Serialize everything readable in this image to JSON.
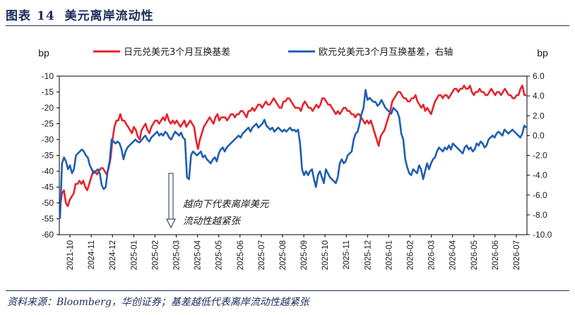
{
  "figure": {
    "label": "图表",
    "number": "14",
    "title": "美元离岸流动性",
    "source": "资料来源：Bloomberg，华创证券；基差越低代表离岸流动性越紧张"
  },
  "colors": {
    "red": "#e8202a",
    "blue": "#1f5eb0",
    "navy": "#1a2c5c"
  },
  "chart_data": {
    "type": "line",
    "left_unit": "bp",
    "right_unit": "bp",
    "left_axis": {
      "min": -60,
      "max": -10,
      "ticks": [
        -10,
        -15,
        -20,
        -25,
        -30,
        -35,
        -40,
        -45,
        -50,
        -55,
        -60
      ]
    },
    "right_axis": {
      "min": -10,
      "max": 6,
      "ticks": [
        "6.0",
        "4.0",
        "2.0",
        "0.0",
        "-2.0",
        "-4.0",
        "-6.0",
        "-8.0",
        "-10.0"
      ],
      "tick_values": [
        6,
        4,
        2,
        0,
        -2,
        -4,
        -6,
        -8,
        -10
      ]
    },
    "x_ticks": [
      "2021-10",
      "2024-11",
      "2024-12",
      "2025-01",
      "2025-02",
      "2025-03",
      "2025-04",
      "2025-05",
      "2025-06",
      "2025-07",
      "2025-08",
      "2025-09",
      "2025-10",
      "2025-11",
      "2025-12",
      "2026-01",
      "2026-02",
      "2026-03",
      "2026-04",
      "2026-05",
      "2026-06",
      "2026-07"
    ],
    "annotation": {
      "line1": "越向下代表离岸美元",
      "line2": "流动性越紧张"
    },
    "series": [
      {
        "name": "日元兑美元3个月互换基差",
        "axis": "left",
        "color": "#e8202a",
        "values": [
          -51,
          -47,
          -46,
          -50,
          -51,
          -49,
          -48,
          -47,
          -44,
          -44,
          -43,
          -44,
          -43,
          -45,
          -46,
          -44,
          -42,
          -40,
          -40,
          -41,
          -40,
          -39,
          -39,
          -40,
          -41,
          -39,
          -36,
          -30,
          -26,
          -24,
          -24,
          -22,
          -24,
          -24,
          -25,
          -26,
          -27,
          -28,
          -26,
          -27,
          -29,
          -30,
          -27,
          -26,
          -25,
          -27,
          -28,
          -26,
          -25,
          -24,
          -24,
          -25,
          -24,
          -23,
          -24,
          -22,
          -24,
          -25,
          -24,
          -25,
          -24,
          -25,
          -26,
          -25,
          -24,
          -26,
          -25,
          -24,
          -25,
          -26,
          -30,
          -33,
          -30,
          -28,
          -26,
          -25,
          -24,
          -23,
          -24,
          -25,
          -23,
          -22,
          -24,
          -23,
          -23,
          -23,
          -24,
          -23,
          -22,
          -22,
          -23,
          -22,
          -22,
          -21,
          -21,
          -22,
          -23,
          -21,
          -21,
          -20,
          -21,
          -20,
          -19,
          -19,
          -20,
          -19,
          -18,
          -19,
          -19,
          -18,
          -17,
          -18,
          -19,
          -20,
          -20,
          -18,
          -18,
          -17,
          -17,
          -18,
          -19,
          -20,
          -20,
          -20,
          -21,
          -19,
          -18,
          -19,
          -20,
          -20,
          -21,
          -20,
          -19,
          -20,
          -19,
          -17,
          -17,
          -18,
          -19,
          -19,
          -20,
          -21,
          -22,
          -21,
          -22,
          -21,
          -20,
          -20,
          -21,
          -21,
          -22,
          -22,
          -23,
          -22,
          -22,
          -23,
          -24,
          -25,
          -24,
          -25,
          -24,
          -26,
          -28,
          -30,
          -32,
          -29,
          -28,
          -27,
          -25,
          -23,
          -21,
          -18,
          -17,
          -16,
          -15,
          -15,
          -16,
          -17,
          -17,
          -18,
          -18,
          -17,
          -17,
          -16,
          -18,
          -19,
          -20,
          -19,
          -21,
          -20,
          -21,
          -22,
          -20,
          -18,
          -17,
          -16,
          -16,
          -17,
          -16,
          -16,
          -17,
          -16,
          -15,
          -14,
          -14,
          -15,
          -14,
          -14,
          -13,
          -14,
          -14,
          -13,
          -15,
          -16,
          -15,
          -15,
          -14,
          -15,
          -15,
          -16,
          -16,
          -15,
          -14,
          -15,
          -16,
          -15,
          -15,
          -16,
          -15,
          -14,
          -15,
          -16,
          -16,
          -17,
          -17,
          -16,
          -16,
          -14,
          -13,
          -16,
          -16
        ]
      },
      {
        "name": "欧元兑美元3个月互换基差，右轴",
        "axis": "right",
        "color": "#1f5eb0",
        "values": [
          -8.4,
          -2.8,
          -2.2,
          -2.6,
          -3.4,
          -3.0,
          -3.8,
          -3.4,
          -2.0,
          -1.8,
          -1.6,
          -1.4,
          -1.6,
          -2.0,
          -2.2,
          -3.0,
          -3.4,
          -3.8,
          -3.6,
          -3.4,
          -3.8,
          -5.0,
          -5.4,
          -5.2,
          -3.6,
          -2.6,
          -0.4,
          -0.6,
          -0.8,
          -0.6,
          -0.8,
          -1.4,
          -2.4,
          -1.6,
          -1.2,
          -1.0,
          -0.8,
          -0.6,
          -0.4,
          -0.6,
          -0.7,
          -0.5,
          -0.2,
          0.0,
          -0.4,
          -0.6,
          -0.2,
          0.0,
          0.2,
          0.4,
          0.0,
          0.2,
          0.0,
          0.4,
          0.2,
          -0.2,
          -0.4,
          0.0,
          0.4,
          0.2,
          0.0,
          0.3,
          -0.2,
          -0.4,
          -4.2,
          -4.4,
          -2.0,
          -1.6,
          -1.8,
          -2.0,
          -1.8,
          -1.6,
          -2.2,
          -2.0,
          -2.4,
          -2.6,
          -2.8,
          -2.4,
          -2.2,
          -2.6,
          -1.8,
          -1.4,
          -1.2,
          -1.6,
          -1.2,
          -1.0,
          -0.8,
          -0.6,
          -0.4,
          -0.2,
          0.0,
          -0.2,
          0.2,
          0.4,
          0.6,
          0.8,
          0.4,
          0.8,
          1.0,
          1.2,
          0.8,
          1.0,
          1.2,
          1.6,
          1.0,
          0.8,
          0.6,
          0.8,
          0.4,
          0.6,
          0.8,
          0.6,
          0.4,
          0.6,
          0.4,
          0.6,
          0.8,
          0.5,
          0.6,
          0.4,
          0.6,
          -0.8,
          -3.4,
          -4.0,
          -3.6,
          -4.0,
          -3.6,
          -3.4,
          -4.4,
          -5.2,
          -4.0,
          -3.6,
          -4.2,
          -4.8,
          -3.4,
          -3.8,
          -4.2,
          -4.4,
          -4.6,
          -4.8,
          -4.2,
          -2.8,
          -2.4,
          -2.8,
          -2.6,
          -2.0,
          -1.8,
          -1.6,
          -0.4,
          0.2,
          0.4,
          1.2,
          2.2,
          2.8,
          4.6,
          3.6,
          3.8,
          3.6,
          3.4,
          3.4,
          3.0,
          3.2,
          3.6,
          3.2,
          2.8,
          2.6,
          2.4,
          2.2,
          2.8,
          2.6,
          2.4,
          1.8,
          0.2,
          -0.4,
          -2.4,
          -3.2,
          -3.8,
          -4.0,
          -3.4,
          -3.6,
          -3.8,
          -3.0,
          -3.4,
          -4.4,
          -3.6,
          -2.8,
          -3.4,
          -2.8,
          -2.4,
          -2.2,
          -1.6,
          -1.2,
          -1.4,
          -1.6,
          -1.2,
          -1.4,
          -1.0,
          -1.4,
          -0.8,
          -1.0,
          -1.2,
          -1.4,
          -1.6,
          -1.8,
          -1.2,
          -1.0,
          -1.4,
          -1.2,
          -1.6,
          -1.4,
          -0.8,
          -1.0,
          -0.6,
          -0.8,
          -1.2,
          -1.0,
          -0.4,
          -0.2,
          0.0,
          -0.2,
          0.2,
          0.4,
          0.2,
          0.0,
          0.6,
          0.4,
          0.2,
          0.4,
          0.6,
          0.4,
          0.2,
          0.0,
          -0.2,
          0.2,
          1.0,
          0.8
        ]
      }
    ]
  }
}
